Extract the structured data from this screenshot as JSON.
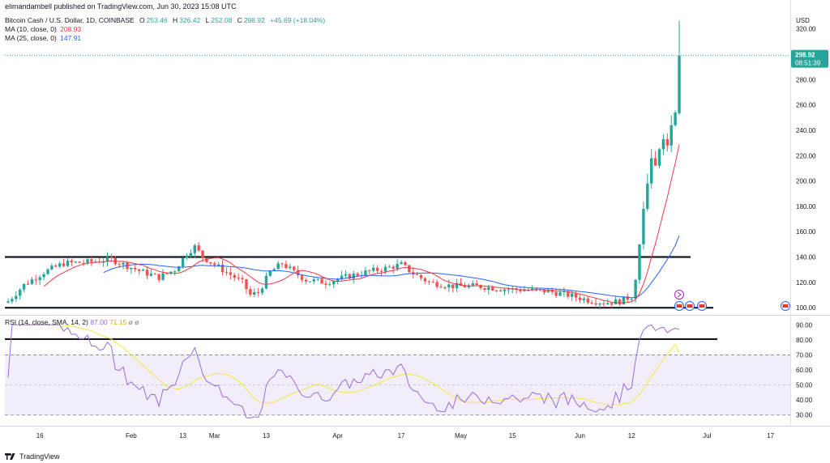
{
  "header": {
    "publisher": "elimandambell published on TradingView.com, Jun 30, 2023 15:08 UTC"
  },
  "legend": {
    "symbol": "Bitcoin Cash / U.S. Dollar, 1D, COINBASE",
    "ohlc": [
      {
        "label": "O",
        "value": "253.46"
      },
      {
        "label": "H",
        "value": "326.42"
      },
      {
        "label": "L",
        "value": "252.08"
      },
      {
        "label": "C",
        "value": "298.92"
      }
    ],
    "change": "+45.69 (+18.04%)",
    "ma10_label": "MA (10, close, 0)",
    "ma10_value": "208.93",
    "ma25_label": "MA (25, close, 0)",
    "ma25_value": "147.91",
    "rsi_label": "RSI (14, close, SMA, 14, 2)",
    "rsi_value": "87.00",
    "rsi_sma_value": "71.15",
    "rsi_extra": "ø ø"
  },
  "price_tag": {
    "price": "298.92",
    "countdown": "08:51:39"
  },
  "footer": {
    "brand": "TradingView"
  },
  "colors": {
    "up": "#26a69a",
    "down": "#ef5350",
    "ma10": "#f23645",
    "ma25": "#2962ff",
    "rsi": "#9c6ade",
    "rsi_sma": "#f5e642",
    "rsi_band": "#ede7f6",
    "price_tag": "#26a69a",
    "levels": "#131722"
  },
  "chart_data": {
    "type": "candlestick",
    "currency": "USD",
    "price_axis": {
      "min": 95,
      "max": 330,
      "ticks": [
        100,
        120,
        140,
        160,
        180,
        200,
        220,
        240,
        260,
        280,
        320
      ]
    },
    "rsi_axis": {
      "min": 25,
      "max": 95,
      "ticks": [
        30,
        40,
        50,
        60,
        70,
        80,
        90
      ],
      "band": [
        30,
        70
      ]
    },
    "x_labels": [
      "16",
      "Feb",
      "13",
      "Mar",
      "13",
      "Apr",
      "17",
      "May",
      "15",
      "Jun",
      "12",
      "Jul",
      "17"
    ],
    "support": 100,
    "resistance": 140,
    "rsi_level": 80.5,
    "candles": [],
    "ma10": [],
    "ma25": [],
    "rsi": [],
    "rsi_sma": []
  }
}
